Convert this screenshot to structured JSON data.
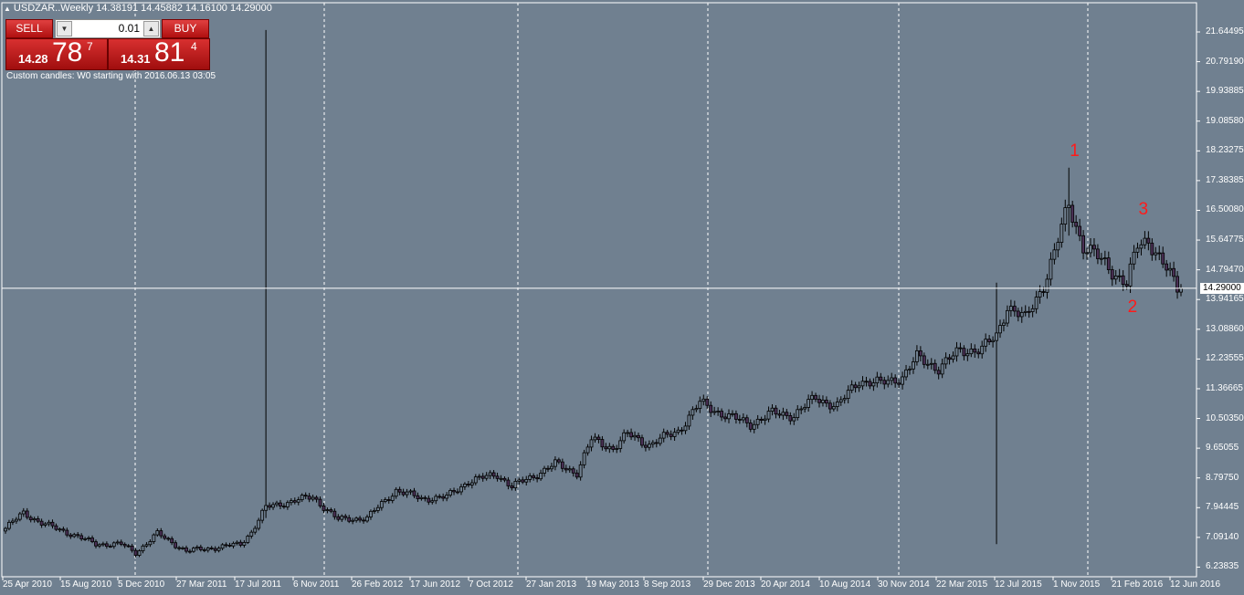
{
  "header": {
    "symbol_line": "USDZAR..Weekly  14.38191 14.45882 14.16100 14.29000"
  },
  "trade_panel": {
    "sell_label": "SELL",
    "buy_label": "BUY",
    "lot_value": "0.01",
    "sell_price": {
      "small": "14.28",
      "big": "78",
      "sup": "7"
    },
    "buy_price": {
      "small": "14.31",
      "big": "81",
      "sup": "4"
    }
  },
  "note": "Custom candles: W0 starting with 2016.06.13 03:05",
  "chart_data": {
    "type": "candlestick",
    "ylim": [
      6.23835,
      22.1
    ],
    "y_ticks": [
      "21.64495",
      "20.79190",
      "19.93885",
      "19.08580",
      "18.23275",
      "17.38385",
      "16.50080",
      "15.64775",
      "14.79470",
      "13.94165",
      "13.08860",
      "12.23555",
      "11.36665",
      "10.50350",
      "9.65055",
      "8.79750",
      "7.94445",
      "7.09140",
      "6.23835"
    ],
    "x_ticks": [
      "25 Apr 2010",
      "15 Aug 2010",
      "5 Dec 2010",
      "27 Mar 2011",
      "17 Jul 2011",
      "6 Nov 2011",
      "26 Feb 2012",
      "17 Jun 2012",
      "7 Oct 2012",
      "27 Jan 2013",
      "19 May 2013",
      "8 Sep 2013",
      "29 Dec 2013",
      "20 Apr 2014",
      "10 Aug 2014",
      "30 Nov 2014",
      "22 Mar 2015",
      "12 Jul 2015",
      "1 Nov 2015",
      "21 Feb 2016",
      "12 Jun 2016"
    ],
    "current_price": "14.29000",
    "current_price_value": 14.29,
    "anchors": [
      {
        "i": 0,
        "v": 7.4
      },
      {
        "i": 5,
        "v": 7.85
      },
      {
        "i": 10,
        "v": 7.55
      },
      {
        "i": 18,
        "v": 7.25
      },
      {
        "i": 25,
        "v": 6.95
      },
      {
        "i": 32,
        "v": 6.95
      },
      {
        "i": 36,
        "v": 6.7
      },
      {
        "i": 42,
        "v": 7.25
      },
      {
        "i": 50,
        "v": 6.75
      },
      {
        "i": 58,
        "v": 6.85
      },
      {
        "i": 65,
        "v": 6.95
      },
      {
        "i": 68,
        "v": 7.3
      },
      {
        "i": 72,
        "v": 8.0
      },
      {
        "i": 80,
        "v": 8.2
      },
      {
        "i": 85,
        "v": 8.3
      },
      {
        "i": 92,
        "v": 7.65
      },
      {
        "i": 100,
        "v": 7.7
      },
      {
        "i": 108,
        "v": 8.5
      },
      {
        "i": 115,
        "v": 8.25
      },
      {
        "i": 122,
        "v": 8.3
      },
      {
        "i": 128,
        "v": 8.75
      },
      {
        "i": 136,
        "v": 8.95
      },
      {
        "i": 140,
        "v": 8.6
      },
      {
        "i": 146,
        "v": 8.9
      },
      {
        "i": 152,
        "v": 9.25
      },
      {
        "i": 158,
        "v": 9.0
      },
      {
        "i": 162,
        "v": 9.95
      },
      {
        "i": 168,
        "v": 9.7
      },
      {
        "i": 172,
        "v": 10.1
      },
      {
        "i": 178,
        "v": 9.8
      },
      {
        "i": 186,
        "v": 10.2
      },
      {
        "i": 192,
        "v": 11.0
      },
      {
        "i": 200,
        "v": 10.6
      },
      {
        "i": 206,
        "v": 10.4
      },
      {
        "i": 212,
        "v": 10.7
      },
      {
        "i": 218,
        "v": 10.65
      },
      {
        "i": 224,
        "v": 11.15
      },
      {
        "i": 230,
        "v": 10.9
      },
      {
        "i": 236,
        "v": 11.65
      },
      {
        "i": 242,
        "v": 11.55
      },
      {
        "i": 248,
        "v": 11.75
      },
      {
        "i": 252,
        "v": 12.3
      },
      {
        "i": 258,
        "v": 12.0
      },
      {
        "i": 264,
        "v": 12.5
      },
      {
        "i": 270,
        "v": 12.55
      },
      {
        "i": 274,
        "v": 12.9
      },
      {
        "i": 277,
        "v": 13.8
      },
      {
        "i": 282,
        "v": 13.4
      },
      {
        "i": 287,
        "v": 14.4
      },
      {
        "i": 290,
        "v": 15.3
      },
      {
        "i": 294,
        "v": 16.7
      },
      {
        "i": 298,
        "v": 15.5
      },
      {
        "i": 304,
        "v": 15.0
      },
      {
        "i": 310,
        "v": 14.4
      },
      {
        "i": 313,
        "v": 15.5
      },
      {
        "i": 316,
        "v": 15.7
      },
      {
        "i": 320,
        "v": 15.0
      },
      {
        "i": 324,
        "v": 14.29
      }
    ],
    "spikes": [
      {
        "i": 72,
        "low": 7.7,
        "high": 21.7
      },
      {
        "i": 274,
        "low": 6.95,
        "high": 14.45
      },
      {
        "i": 294,
        "low": 15.8,
        "high": 17.75
      }
    ],
    "wave_labels": [
      {
        "text": "1",
        "i": 294,
        "v": 18.2
      },
      {
        "text": "2",
        "i": 310,
        "v": 13.7
      },
      {
        "text": "3",
        "i": 313,
        "v": 16.5
      }
    ]
  }
}
